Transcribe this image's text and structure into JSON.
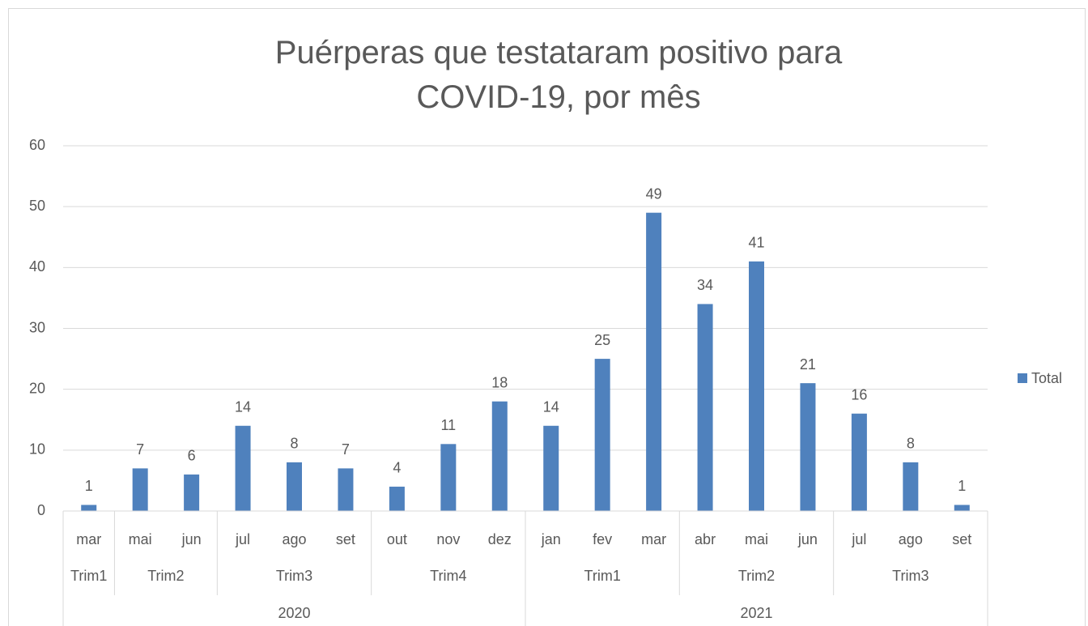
{
  "chart_data": {
    "type": "bar",
    "title": "Puérperas que testataram positivo para COVID-19, por mês",
    "groups": [
      {
        "name": "2020",
        "quarters": [
          {
            "name": "Trim1",
            "months": [
              "mar"
            ]
          },
          {
            "name": "Trim2",
            "months": [
              "mai",
              "jun"
            ]
          },
          {
            "name": "Trim3",
            "months": [
              "jul",
              "ago",
              "set"
            ]
          },
          {
            "name": "Trim4",
            "months": [
              "out",
              "nov",
              "dez"
            ]
          }
        ]
      },
      {
        "name": "2021",
        "quarters": [
          {
            "name": "Trim1",
            "months": [
              "jan",
              "fev",
              "mar"
            ]
          },
          {
            "name": "Trim2",
            "months": [
              "abr",
              "mai",
              "jun"
            ]
          },
          {
            "name": "Trim3",
            "months": [
              "jul",
              "ago",
              "set"
            ]
          }
        ]
      }
    ],
    "series": [
      {
        "name": "Total",
        "color": "#4f81bd",
        "values": [
          1,
          7,
          6,
          14,
          8,
          7,
          4,
          11,
          18,
          14,
          25,
          49,
          34,
          41,
          21,
          16,
          8,
          1
        ]
      }
    ],
    "ylim": [
      0,
      60
    ],
    "yticks": [
      0,
      10,
      20,
      30,
      40,
      50,
      60
    ],
    "grid": true,
    "legend": "right"
  }
}
